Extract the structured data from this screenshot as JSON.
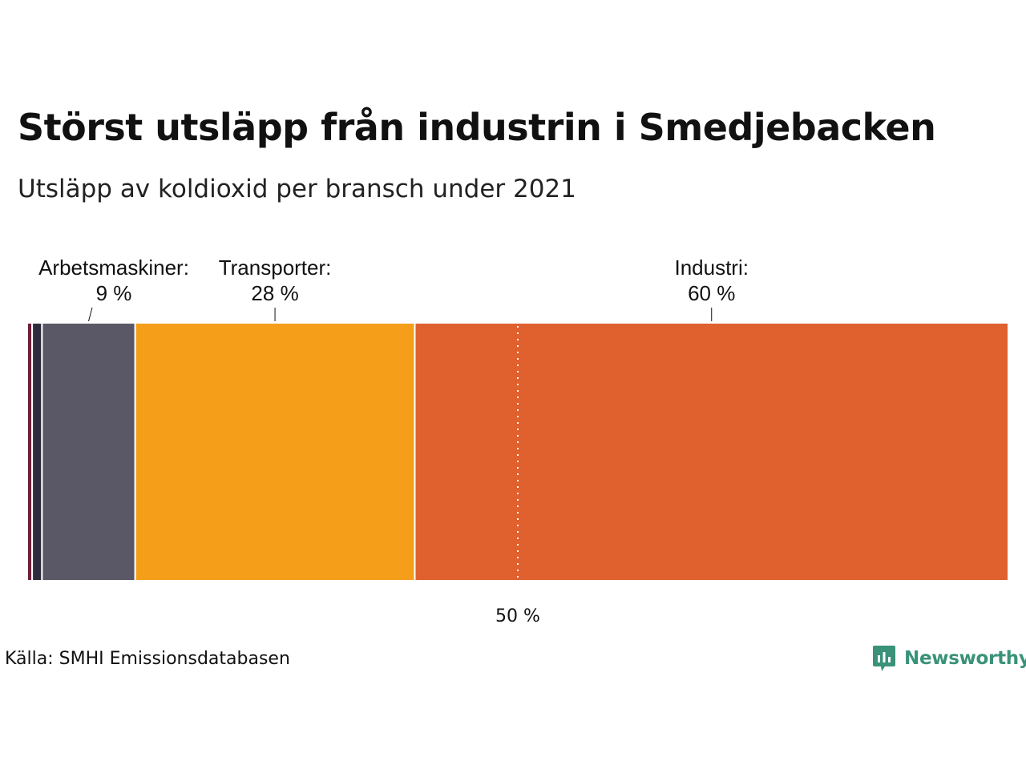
{
  "header": {
    "title": "Störst utsläpp från industrin i Smedjebacken",
    "subtitle": "Utsläpp av koldioxid per bransch under 2021"
  },
  "footer": {
    "source": "Källa: SMHI Emissionsdatabasen",
    "brand": "Newsworthy"
  },
  "chart_data": {
    "type": "bar",
    "orientation": "horizontal-stacked",
    "title": "Störst utsläpp från industrin i Smedjebacken",
    "subtitle": "Utsläpp av koldioxid per bransch under 2021",
    "unit": "%",
    "xlim": [
      0,
      100
    ],
    "segments": [
      {
        "value": 0.5,
        "color": "#6e1f3c",
        "label": "",
        "value_label": ""
      },
      {
        "value": 1,
        "color": "#2e2c3c",
        "label": "",
        "value_label": ""
      },
      {
        "value": 9.5,
        "color": "#5a5767",
        "label": "Arbetsmaskiner:",
        "value_label": "9 %"
      },
      {
        "value": 28.5,
        "color": "#f59e1a",
        "label": "Transporter:",
        "value_label": "28 %"
      },
      {
        "value": 60.5,
        "color": "#e0602e",
        "label": "Industri:",
        "value_label": "60 %"
      }
    ],
    "reference_line": {
      "value": 50,
      "label": "50 %",
      "style": "dotted"
    },
    "grid": false,
    "legend": "none"
  }
}
